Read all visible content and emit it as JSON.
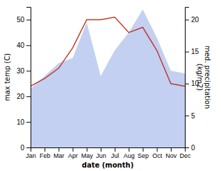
{
  "chart_data": {
    "type": "line",
    "xlabel": "date (month)",
    "ylabel": "max temp (C)",
    "y2label": "med. precipitation\n(kg/m2)",
    "categories": [
      "Jan",
      "Feb",
      "Mar",
      "Apr",
      "May",
      "Jun",
      "Jul",
      "Aug",
      "Sep",
      "Oct",
      "Nov",
      "Dec"
    ],
    "series": [
      {
        "type": "area",
        "color": "#b8c8f0",
        "values": [
          23,
          28,
          33,
          35,
          49,
          28,
          38,
          45,
          54,
          43,
          30,
          29
        ]
      },
      {
        "type": "line",
        "color": "#c0392b",
        "values": [
          24,
          27,
          31,
          39,
          50,
          50,
          51,
          45,
          47,
          38,
          25,
          24
        ]
      }
    ],
    "ylim": [
      0,
      55
    ],
    "yticks": [
      0,
      10,
      20,
      30,
      40,
      50
    ],
    "y2lim": [
      0,
      22
    ],
    "y2ticks": [
      0,
      5,
      10,
      15,
      20
    ],
    "grid": false
  }
}
